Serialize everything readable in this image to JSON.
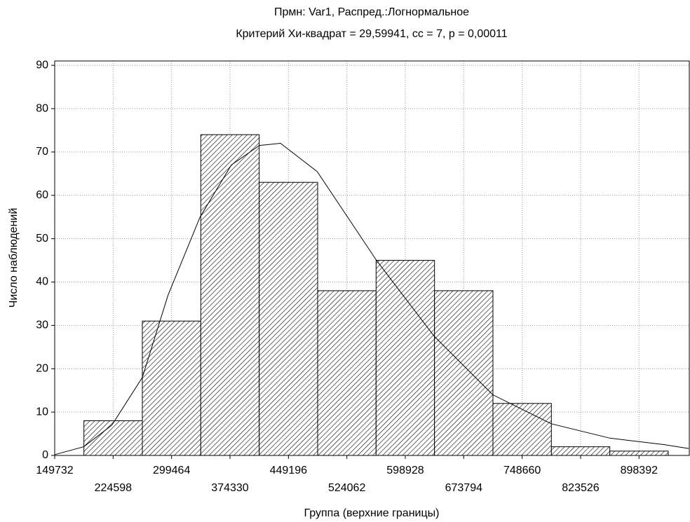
{
  "chart_data": {
    "type": "histogram",
    "title": "Прмн: Var1, Распред.:Логнормальное",
    "subtitle": "Критерий Хи-квадрат = 29,59941, сс = 7, р = 0,00011",
    "x_label": "Группа (верхние границы)",
    "y_label": "Число наблюдений",
    "bins": [
      187165,
      262031,
      336897,
      411763,
      486629,
      561495,
      636361,
      711227,
      786093,
      860959,
      935825
    ],
    "counts": [
      8,
      31,
      74,
      63,
      38,
      45,
      38,
      12,
      2,
      1
    ],
    "color": "#000000",
    "curve": {
      "x": [
        150000,
        187000,
        223000,
        262000,
        295000,
        336000,
        376000,
        412000,
        439000,
        486000,
        562000,
        636000,
        711000,
        786000,
        861000,
        930000,
        962000
      ],
      "y": [
        0.2,
        2,
        7,
        18,
        37,
        55,
        67,
        71.5,
        72,
        65.5,
        45,
        27.5,
        14,
        7.3,
        4,
        2.5,
        1.6
      ]
    },
    "xlim": [
      149732,
      962800
    ],
    "ylim": [
      0,
      91
    ],
    "xticks": [
      149732,
      224598,
      299464,
      374330,
      449196,
      524062,
      598928,
      673794,
      748660,
      823526,
      898392
    ],
    "yticks": [
      0,
      10,
      20,
      30,
      40,
      50,
      60,
      70,
      80,
      90
    ],
    "grid": true
  }
}
